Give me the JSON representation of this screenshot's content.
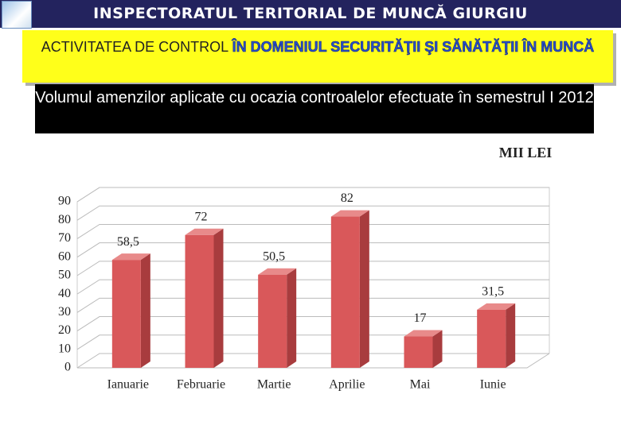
{
  "chart_data": {
    "type": "bar3d",
    "header": "INSPECTORATUL TERITORIAL DE MUNCĂ GIURGIU",
    "title": [
      "ACTIVITATEA DE CONTROL",
      "ÎN DOMENIUL SECURITĂŢII ŞI SĂNĂTĂŢII ÎN MUNCĂ"
    ],
    "subtitle": "Volumul amenzilor aplicate cu ocazia controalelor efectuate în semestrul I 2012",
    "unit_label": "MII LEI",
    "categories": [
      "Ianuarie",
      "Februarie",
      "Martie",
      "Aprilie",
      "Mai",
      "Iunie"
    ],
    "values": [
      58.5,
      72,
      50.5,
      82,
      17,
      31.5
    ],
    "value_labels": [
      "58,5",
      "72",
      "50,5",
      "82",
      "17",
      "31,5"
    ],
    "color": "#d9585a",
    "ylim": [
      0,
      90
    ],
    "yticks": [
      0,
      10,
      20,
      30,
      40,
      50,
      60,
      70,
      80,
      90
    ],
    "grid": true
  }
}
